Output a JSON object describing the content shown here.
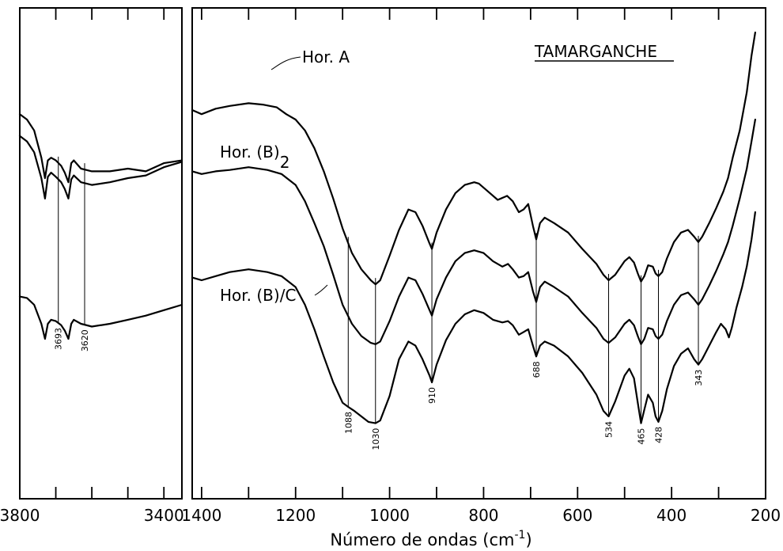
{
  "chart_data": {
    "type": "line",
    "title": "TAMARGANCHE",
    "xlabel": "Número de ondas (cm",
    "xlabel_sup": "-1",
    "xlabel_suffix": ")",
    "xaxis_reversed": true,
    "y_ticks_shown": false,
    "grid": false,
    "panels": [
      {
        "name": "left",
        "xlim": [
          3800,
          3350
        ],
        "x_ticks": [
          3800,
          3700,
          3600,
          3500,
          3400
        ],
        "x_tick_labels": [
          "3800",
          "3400"
        ],
        "peak_labels": [
          "3693",
          "3620"
        ]
      },
      {
        "name": "right",
        "xlim": [
          1420,
          200
        ],
        "x_ticks": [
          1400,
          1300,
          1200,
          1100,
          1000,
          900,
          800,
          700,
          600,
          500,
          400,
          300,
          200
        ],
        "x_tick_labels": [
          "1400",
          "1200",
          "1000",
          "800",
          "600",
          "400",
          "200"
        ],
        "peak_labels": [
          "1088",
          "1030",
          "910",
          "688",
          "534",
          "465",
          "428",
          "343"
        ]
      }
    ],
    "series": [
      {
        "name": "Hor. A",
        "left": [
          [
            3800,
            78
          ],
          [
            3780,
            82
          ],
          [
            3760,
            90
          ],
          [
            3740,
            110
          ],
          [
            3730,
            125
          ],
          [
            3722,
            112
          ],
          [
            3713,
            110
          ],
          [
            3700,
            112
          ],
          [
            3685,
            116
          ],
          [
            3675,
            121
          ],
          [
            3665,
            128
          ],
          [
            3657,
            114
          ],
          [
            3650,
            112
          ],
          [
            3630,
            118
          ],
          [
            3600,
            120
          ],
          [
            3550,
            120
          ],
          [
            3500,
            118
          ],
          [
            3450,
            120
          ],
          [
            3400,
            114
          ],
          [
            3350,
            112
          ]
        ],
        "right": [
          [
            1420,
            75
          ],
          [
            1400,
            78
          ],
          [
            1370,
            74
          ],
          [
            1340,
            72
          ],
          [
            1300,
            70
          ],
          [
            1270,
            71
          ],
          [
            1240,
            73
          ],
          [
            1220,
            78
          ],
          [
            1200,
            82
          ],
          [
            1180,
            90
          ],
          [
            1160,
            103
          ],
          [
            1140,
            120
          ],
          [
            1120,
            140
          ],
          [
            1100,
            162
          ],
          [
            1080,
            180
          ],
          [
            1060,
            192
          ],
          [
            1040,
            200
          ],
          [
            1030,
            203
          ],
          [
            1020,
            200
          ],
          [
            1000,
            182
          ],
          [
            980,
            163
          ],
          [
            960,
            148
          ],
          [
            945,
            150
          ],
          [
            930,
            160
          ],
          [
            915,
            173
          ],
          [
            910,
            177
          ],
          [
            900,
            165
          ],
          [
            880,
            148
          ],
          [
            860,
            136
          ],
          [
            840,
            130
          ],
          [
            820,
            128
          ],
          [
            810,
            129
          ],
          [
            790,
            135
          ],
          [
            770,
            141
          ],
          [
            750,
            138
          ],
          [
            738,
            142
          ],
          [
            725,
            150
          ],
          [
            715,
            148
          ],
          [
            705,
            144
          ],
          [
            695,
            160
          ],
          [
            688,
            170
          ],
          [
            680,
            158
          ],
          [
            670,
            154
          ],
          [
            650,
            158
          ],
          [
            620,
            165
          ],
          [
            590,
            177
          ],
          [
            560,
            188
          ],
          [
            545,
            196
          ],
          [
            534,
            200
          ],
          [
            520,
            196
          ],
          [
            500,
            186
          ],
          [
            490,
            183
          ],
          [
            480,
            187
          ],
          [
            472,
            195
          ],
          [
            465,
            201
          ],
          [
            458,
            197
          ],
          [
            450,
            189
          ],
          [
            440,
            190
          ],
          [
            434,
            195
          ],
          [
            428,
            197
          ],
          [
            420,
            194
          ],
          [
            410,
            184
          ],
          [
            395,
            172
          ],
          [
            380,
            165
          ],
          [
            365,
            163
          ],
          [
            352,
            168
          ],
          [
            343,
            172
          ],
          [
            335,
            168
          ],
          [
            320,
            158
          ],
          [
            305,
            147
          ],
          [
            290,
            135
          ],
          [
            280,
            125
          ],
          [
            270,
            110
          ],
          [
            255,
            90
          ],
          [
            240,
            62
          ],
          [
            230,
            35
          ],
          [
            222,
            18
          ]
        ]
      },
      {
        "name": "Hor. (B)2",
        "name_base": "Hor. (B)",
        "name_sub": "2",
        "left": [
          [
            3800,
            94
          ],
          [
            3780,
            98
          ],
          [
            3760,
            106
          ],
          [
            3740,
            125
          ],
          [
            3730,
            140
          ],
          [
            3722,
            124
          ],
          [
            3713,
            121
          ],
          [
            3700,
            124
          ],
          [
            3685,
            128
          ],
          [
            3675,
            133
          ],
          [
            3665,
            140
          ],
          [
            3657,
            126
          ],
          [
            3650,
            123
          ],
          [
            3630,
            128
          ],
          [
            3600,
            130
          ],
          [
            3550,
            128
          ],
          [
            3500,
            125
          ],
          [
            3450,
            123
          ],
          [
            3400,
            117
          ],
          [
            3350,
            113
          ]
        ],
        "right": [
          [
            1420,
            120
          ],
          [
            1400,
            122
          ],
          [
            1370,
            120
          ],
          [
            1340,
            119
          ],
          [
            1300,
            117
          ],
          [
            1260,
            119
          ],
          [
            1230,
            122
          ],
          [
            1200,
            130
          ],
          [
            1180,
            142
          ],
          [
            1160,
            158
          ],
          [
            1140,
            175
          ],
          [
            1120,
            196
          ],
          [
            1100,
            218
          ],
          [
            1080,
            232
          ],
          [
            1060,
            241
          ],
          [
            1040,
            246
          ],
          [
            1030,
            247
          ],
          [
            1020,
            245
          ],
          [
            1000,
            230
          ],
          [
            980,
            212
          ],
          [
            960,
            198
          ],
          [
            945,
            200
          ],
          [
            930,
            210
          ],
          [
            915,
            222
          ],
          [
            910,
            226
          ],
          [
            900,
            214
          ],
          [
            880,
            198
          ],
          [
            860,
            186
          ],
          [
            840,
            180
          ],
          [
            820,
            178
          ],
          [
            800,
            180
          ],
          [
            780,
            186
          ],
          [
            760,
            190
          ],
          [
            748,
            188
          ],
          [
            738,
            192
          ],
          [
            725,
            198
          ],
          [
            715,
            197
          ],
          [
            705,
            194
          ],
          [
            695,
            208
          ],
          [
            688,
            216
          ],
          [
            680,
            205
          ],
          [
            670,
            201
          ],
          [
            650,
            205
          ],
          [
            620,
            212
          ],
          [
            590,
            224
          ],
          [
            560,
            235
          ],
          [
            545,
            243
          ],
          [
            534,
            246
          ],
          [
            520,
            242
          ],
          [
            500,
            232
          ],
          [
            490,
            229
          ],
          [
            480,
            233
          ],
          [
            472,
            241
          ],
          [
            465,
            247
          ],
          [
            458,
            243
          ],
          [
            450,
            235
          ],
          [
            440,
            236
          ],
          [
            434,
            241
          ],
          [
            428,
            243
          ],
          [
            420,
            240
          ],
          [
            410,
            230
          ],
          [
            395,
            218
          ],
          [
            380,
            211
          ],
          [
            365,
            209
          ],
          [
            352,
            214
          ],
          [
            343,
            218
          ],
          [
            335,
            214
          ],
          [
            320,
            204
          ],
          [
            305,
            193
          ],
          [
            290,
            181
          ],
          [
            280,
            172
          ],
          [
            270,
            160
          ],
          [
            255,
            140
          ],
          [
            240,
            118
          ],
          [
            230,
            98
          ],
          [
            222,
            82
          ]
        ]
      },
      {
        "name": "Hor. (B)/C",
        "left": [
          [
            3800,
            212
          ],
          [
            3780,
            213
          ],
          [
            3760,
            218
          ],
          [
            3740,
            232
          ],
          [
            3730,
            243
          ],
          [
            3722,
            232
          ],
          [
            3713,
            229
          ],
          [
            3700,
            230
          ],
          [
            3685,
            233
          ],
          [
            3675,
            237
          ],
          [
            3665,
            243
          ],
          [
            3657,
            232
          ],
          [
            3650,
            229
          ],
          [
            3630,
            232
          ],
          [
            3600,
            234
          ],
          [
            3550,
            232
          ],
          [
            3500,
            229
          ],
          [
            3450,
            226
          ],
          [
            3400,
            222
          ],
          [
            3350,
            218
          ]
        ],
        "right": [
          [
            1420,
            198
          ],
          [
            1400,
            200
          ],
          [
            1370,
            197
          ],
          [
            1340,
            194
          ],
          [
            1300,
            192
          ],
          [
            1260,
            194
          ],
          [
            1230,
            197
          ],
          [
            1200,
            205
          ],
          [
            1180,
            218
          ],
          [
            1160,
            236
          ],
          [
            1140,
            256
          ],
          [
            1120,
            275
          ],
          [
            1100,
            290
          ],
          [
            1088,
            293
          ],
          [
            1075,
            296
          ],
          [
            1060,
            300
          ],
          [
            1045,
            304
          ],
          [
            1030,
            305
          ],
          [
            1020,
            303
          ],
          [
            1000,
            285
          ],
          [
            980,
            258
          ],
          [
            960,
            245
          ],
          [
            945,
            248
          ],
          [
            930,
            258
          ],
          [
            915,
            270
          ],
          [
            910,
            275
          ],
          [
            900,
            262
          ],
          [
            880,
            244
          ],
          [
            860,
            232
          ],
          [
            840,
            225
          ],
          [
            820,
            222
          ],
          [
            800,
            224
          ],
          [
            780,
            229
          ],
          [
            760,
            231
          ],
          [
            748,
            230
          ],
          [
            738,
            233
          ],
          [
            725,
            240
          ],
          [
            715,
            238
          ],
          [
            705,
            236
          ],
          [
            695,
            248
          ],
          [
            688,
            256
          ],
          [
            680,
            248
          ],
          [
            670,
            245
          ],
          [
            650,
            248
          ],
          [
            620,
            256
          ],
          [
            590,
            268
          ],
          [
            560,
            284
          ],
          [
            545,
            296
          ],
          [
            534,
            300
          ],
          [
            520,
            289
          ],
          [
            500,
            270
          ],
          [
            490,
            265
          ],
          [
            480,
            272
          ],
          [
            472,
            290
          ],
          [
            465,
            305
          ],
          [
            458,
            295
          ],
          [
            450,
            284
          ],
          [
            440,
            290
          ],
          [
            434,
            300
          ],
          [
            428,
            304
          ],
          [
            420,
            296
          ],
          [
            410,
            280
          ],
          [
            395,
            263
          ],
          [
            380,
            254
          ],
          [
            365,
            250
          ],
          [
            352,
            258
          ],
          [
            343,
            262
          ],
          [
            335,
            258
          ],
          [
            320,
            248
          ],
          [
            305,
            238
          ],
          [
            295,
            232
          ],
          [
            285,
            236
          ],
          [
            278,
            242
          ],
          [
            272,
            235
          ],
          [
            262,
            220
          ],
          [
            250,
            205
          ],
          [
            240,
            190
          ],
          [
            230,
            170
          ],
          [
            222,
            150
          ]
        ]
      }
    ]
  }
}
